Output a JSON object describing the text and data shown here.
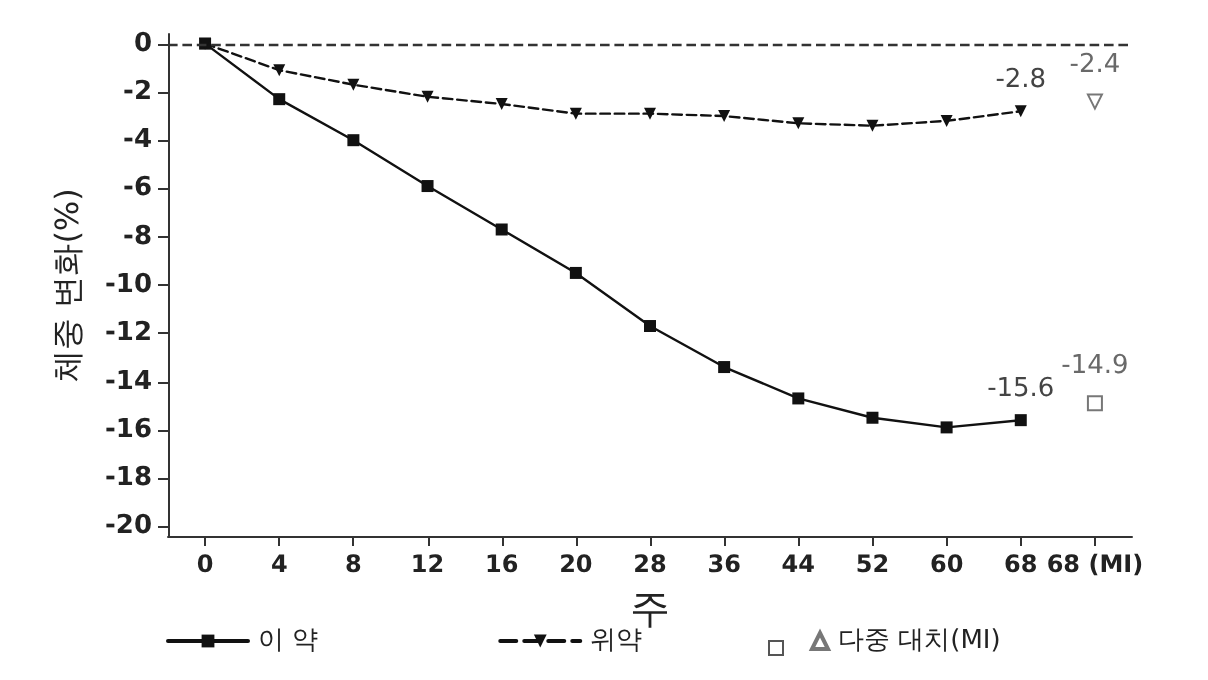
{
  "chart_data": {
    "type": "line",
    "xlabel": "주",
    "ylabel": "체중 변화(%)",
    "ylim": [
      -20.4,
      0.4
    ],
    "categories": [
      "0",
      "4",
      "8",
      "12",
      "16",
      "20",
      "28",
      "36",
      "44",
      "52",
      "60",
      "68",
      "68 (MI)"
    ],
    "yticks": [
      0,
      -2,
      -4,
      -6,
      -8,
      -10,
      -12,
      -14,
      -16,
      -18,
      -20
    ],
    "series": [
      {
        "name": "이 약",
        "color": "#111111",
        "marker": "square",
        "line_style": "solid",
        "values": [
          0,
          -2.3,
          -4.0,
          -5.9,
          -7.7,
          -9.5,
          -11.7,
          -13.4,
          -14.7,
          -15.5,
          -15.9,
          -15.6,
          null
        ],
        "value_labels": [
          null,
          null,
          null,
          null,
          null,
          null,
          null,
          null,
          null,
          null,
          null,
          "-15.6",
          null
        ]
      },
      {
        "name": "위약",
        "color": "#111111",
        "marker": "triangle",
        "line_style": "dashed",
        "values": [
          0,
          -1.1,
          -1.7,
          -2.2,
          -2.5,
          -2.9,
          -2.9,
          -3.0,
          -3.3,
          -3.4,
          -3.2,
          -2.8,
          null
        ],
        "value_labels": [
          null,
          null,
          null,
          null,
          null,
          null,
          null,
          null,
          null,
          null,
          null,
          "-2.8",
          null
        ]
      },
      {
        "type": "scatter",
        "color": "#555555",
        "marker": "square",
        "values": [
          null,
          null,
          null,
          null,
          null,
          null,
          null,
          null,
          null,
          null,
          null,
          null,
          -14.9
        ],
        "value_labels": [
          null,
          null,
          null,
          null,
          null,
          null,
          null,
          null,
          null,
          null,
          null,
          null,
          "-14.9"
        ]
      },
      {
        "name": "다중 대치(MI)",
        "type": "scatter",
        "color": "#555555",
        "marker": "triangle",
        "values": [
          null,
          null,
          null,
          null,
          null,
          null,
          null,
          null,
          null,
          null,
          null,
          null,
          -2.4
        ],
        "value_labels": [
          null,
          null,
          null,
          null,
          null,
          null,
          null,
          null,
          null,
          null,
          null,
          null,
          "-2.4"
        ]
      }
    ],
    "ref_lines": [
      {
        "axis": "y",
        "value": 0,
        "color": "#333333",
        "line_style": "dashed"
      }
    ],
    "grid": false,
    "legend": "bottom"
  }
}
